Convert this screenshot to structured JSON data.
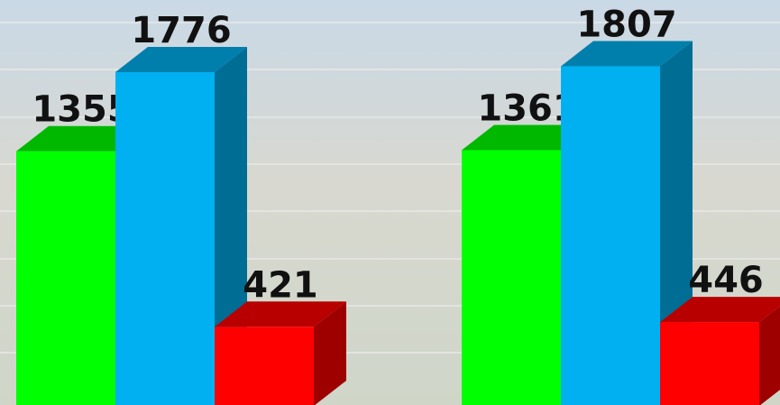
{
  "chart_data": {
    "type": "bar3d",
    "categories": [
      null,
      null
    ],
    "series": [
      {
        "color": "#00ff00",
        "values": [
          1355,
          1361
        ]
      },
      {
        "color": "#00b0f0",
        "values": [
          1776,
          1807
        ]
      },
      {
        "color": "#ff0000",
        "values": [
          421,
          446
        ]
      }
    ],
    "ylim": [
      0,
      2160
    ]
  }
}
